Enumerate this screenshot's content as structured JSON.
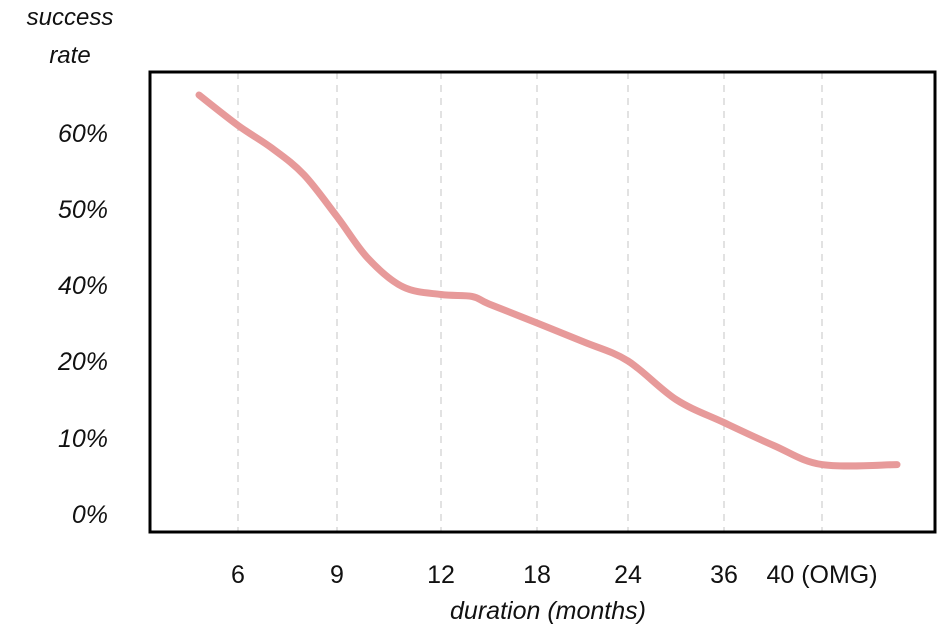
{
  "chart_data": {
    "type": "line",
    "title": "",
    "ylabel": [
      "success",
      "rate"
    ],
    "xlabel": "duration (months)",
    "x_ticks": [
      "6",
      "9",
      "12",
      "18",
      "24",
      "36",
      "40 (OMG)"
    ],
    "y_ticks": [
      "60%",
      "50%",
      "40%",
      "20%",
      "10%",
      "0%"
    ],
    "grid": "vertical dashed at x ticks",
    "series": [
      {
        "color": "#e79a9a",
        "x": [
          "5",
          "6",
          "7",
          "8",
          "9",
          "10",
          "11",
          "12",
          "13",
          "15",
          "18",
          "21",
          "24",
          "30",
          "36",
          "38",
          "40 (OMG)",
          "42"
        ],
        "y": [
          65,
          61,
          58,
          54.5,
          49,
          43.5,
          39.5,
          37.5,
          37,
          35,
          30,
          25,
          20,
          15,
          12,
          9,
          6.5,
          6.5
        ]
      }
    ]
  },
  "colors": {
    "line": "#e79a9a",
    "frame": "#000000",
    "grid": "#d9d9d9"
  }
}
